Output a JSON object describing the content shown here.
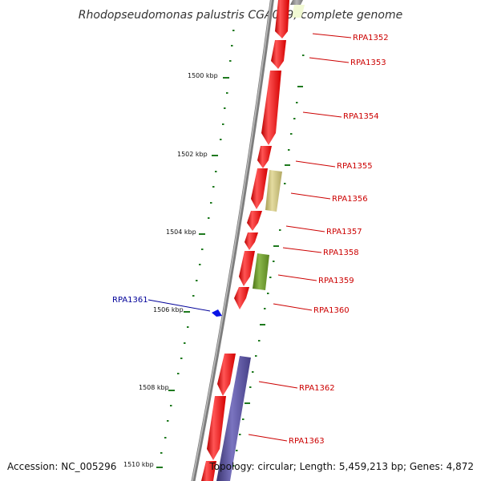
{
  "title": "Rhodopseudomonas palustris CGA009, complete genome",
  "accession": "Accession: NC_005296",
  "topology": "Topology: circular; Length: 5,459,213 bp; Genes: 4,872",
  "scale_labels": [
    "1500 kbp",
    "1502 kbp",
    "1504 kbp",
    "1506 kbp",
    "1508 kbp",
    "1510 kbp"
  ],
  "genes": [
    {
      "label": "RPA1352",
      "color": "red"
    },
    {
      "label": "RPA1353",
      "color": "red"
    },
    {
      "label": "RPA1354",
      "color": "red"
    },
    {
      "label": "RPA1355",
      "color": "red"
    },
    {
      "label": "RPA1356",
      "color": "tan"
    },
    {
      "label": "RPA1357",
      "color": "red"
    },
    {
      "label": "RPA1358",
      "color": "red"
    },
    {
      "label": "RPA1359",
      "color": "olive"
    },
    {
      "label": "RPA1360",
      "color": "red"
    },
    {
      "label": "RPA1361",
      "color": "blue"
    },
    {
      "label": "RPA1362",
      "color": "red"
    },
    {
      "label": "RPA1363",
      "color": "purple"
    }
  ],
  "colors": {
    "forward_gene": "#ee1111",
    "tan_gene": "#c8bf7a",
    "olive_gene": "#6f9a2a",
    "purple_gene": "#4f4a96",
    "blue_gene": "#0a14e6",
    "label_red": "#cc0000",
    "label_blue": "#000099",
    "tick_green": "#1f7a1f",
    "backbone": "#8a8a8a"
  }
}
